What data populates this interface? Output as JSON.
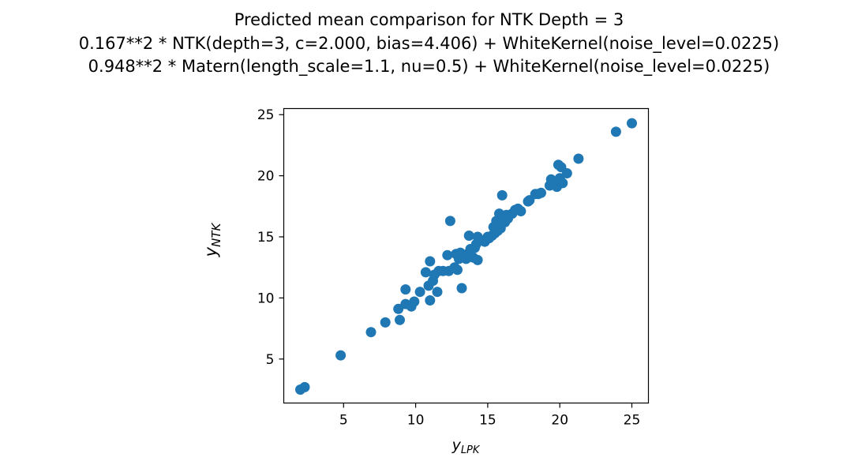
{
  "chart_data": {
    "type": "scatter",
    "title_lines": [
      "Predicted mean comparison for NTK Depth = 3",
      "0.167**2 * NTK(depth=3, c=2.000, bias=4.406) + WhiteKernel(noise_level=0.0225)",
      "0.948**2 * Matern(length_scale=1.1, nu=0.5) + WhiteKernel(noise_level=0.0225)"
    ],
    "xlabel": {
      "base": "y",
      "sub": "LPK"
    },
    "ylabel": {
      "base": "y",
      "sub": "NTK"
    },
    "xlim": [
      0.85,
      26.15
    ],
    "ylim": [
      1.4,
      25.5
    ],
    "xticks": [
      5,
      10,
      15,
      20,
      25
    ],
    "yticks": [
      5,
      10,
      15,
      20,
      25
    ],
    "marker_color": "#1f77b4",
    "points": [
      [
        2.0,
        2.5
      ],
      [
        2.3,
        2.7
      ],
      [
        4.8,
        5.3
      ],
      [
        6.9,
        7.2
      ],
      [
        7.9,
        8.0
      ],
      [
        8.8,
        9.1
      ],
      [
        8.9,
        8.2
      ],
      [
        9.3,
        9.5
      ],
      [
        9.3,
        10.7
      ],
      [
        9.7,
        9.3
      ],
      [
        9.9,
        9.7
      ],
      [
        10.3,
        10.5
      ],
      [
        10.7,
        12.1
      ],
      [
        10.9,
        11.0
      ],
      [
        11.0,
        9.8
      ],
      [
        11.0,
        13.0
      ],
      [
        11.2,
        11.4
      ],
      [
        11.3,
        11.9
      ],
      [
        11.5,
        10.5
      ],
      [
        11.6,
        12.2
      ],
      [
        11.9,
        12.2
      ],
      [
        12.2,
        13.5
      ],
      [
        12.3,
        12.2
      ],
      [
        12.4,
        16.3
      ],
      [
        12.7,
        12.5
      ],
      [
        12.8,
        13.6
      ],
      [
        12.9,
        12.3
      ],
      [
        13.0,
        13.2
      ],
      [
        13.1,
        13.7
      ],
      [
        13.2,
        10.8
      ],
      [
        13.5,
        13.2
      ],
      [
        13.6,
        13.6
      ],
      [
        13.7,
        15.1
      ],
      [
        13.8,
        14.0
      ],
      [
        14.0,
        13.3
      ],
      [
        14.1,
        14.1
      ],
      [
        14.2,
        14.4
      ],
      [
        14.3,
        15.0
      ],
      [
        14.3,
        13.1
      ],
      [
        14.6,
        14.7
      ],
      [
        14.8,
        14.6
      ],
      [
        15.0,
        15.0
      ],
      [
        15.1,
        14.9
      ],
      [
        15.3,
        15.1
      ],
      [
        15.4,
        15.8
      ],
      [
        15.5,
        15.3
      ],
      [
        15.6,
        16.3
      ],
      [
        15.7,
        15.5
      ],
      [
        15.8,
        16.9
      ],
      [
        15.8,
        16.0
      ],
      [
        15.9,
        15.7
      ],
      [
        16.0,
        18.4
      ],
      [
        16.1,
        16.6
      ],
      [
        16.2,
        16.2
      ],
      [
        16.3,
        16.8
      ],
      [
        16.4,
        16.5
      ],
      [
        16.7,
        16.9
      ],
      [
        16.9,
        17.2
      ],
      [
        17.1,
        17.3
      ],
      [
        17.3,
        17.1
      ],
      [
        17.8,
        17.9
      ],
      [
        17.9,
        18.0
      ],
      [
        18.3,
        18.5
      ],
      [
        18.5,
        18.5
      ],
      [
        18.7,
        18.6
      ],
      [
        19.3,
        19.2
      ],
      [
        19.4,
        19.7
      ],
      [
        19.7,
        19.5
      ],
      [
        19.8,
        19.1
      ],
      [
        19.9,
        20.9
      ],
      [
        20.0,
        19.8
      ],
      [
        20.1,
        20.7
      ],
      [
        20.2,
        19.4
      ],
      [
        20.5,
        20.2
      ],
      [
        21.3,
        21.4
      ],
      [
        23.9,
        23.6
      ],
      [
        25.0,
        24.3
      ]
    ]
  }
}
